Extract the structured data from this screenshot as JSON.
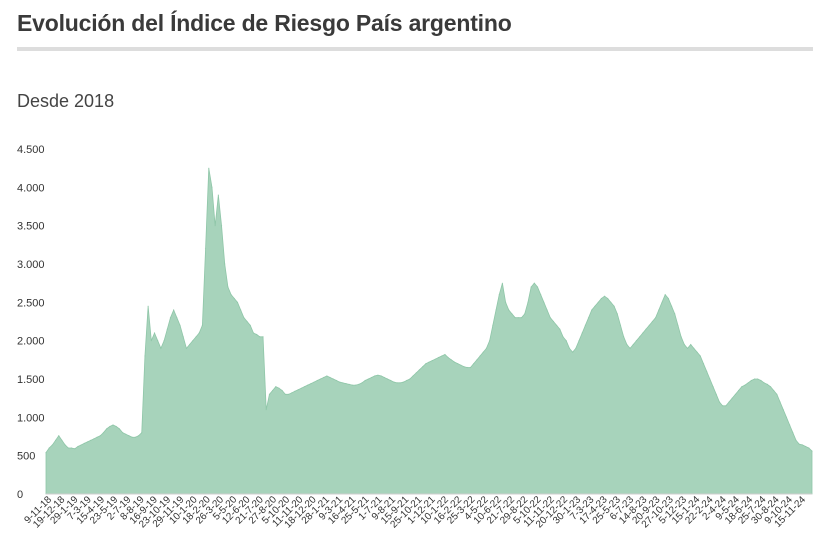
{
  "header": {
    "title": "Evolución del Índice de Riesgo País argentino",
    "subtitle": "Desde 2018"
  },
  "colors": {
    "area_fill": "#a7d3bb",
    "area_stroke": "#8fc6a8",
    "text": "#333333",
    "rule": "#dddddd"
  },
  "chart_data": {
    "type": "area",
    "title": "Evolución del Índice de Riesgo País argentino",
    "subtitle": "Desde 2018",
    "xlabel": "",
    "ylabel": "",
    "ylim": [
      0,
      4500
    ],
    "y_ticks": [
      0,
      500,
      1000,
      1500,
      2000,
      2500,
      3000,
      3500,
      4000,
      4500
    ],
    "y_tick_labels": [
      "0",
      "500",
      "1.000",
      "1.500",
      "2.000",
      "2.500",
      "3.000",
      "3.500",
      "4.000",
      "4.500"
    ],
    "x_tick_labels": [
      "9-11-18",
      "19-12-18",
      "29-1-19",
      "7-3-19",
      "15-4-19",
      "23-5-19",
      "2-7-19",
      "8-8-19",
      "16-9-19",
      "23-10-19",
      "29-11-19",
      "10-1-20",
      "18-2-20",
      "26-3-20",
      "5-5-20",
      "12-6-20",
      "21-7-20",
      "27-8-20",
      "5-10-20",
      "11-11-20",
      "18-12-20",
      "28-1-21",
      "9-3-21",
      "16-4-21",
      "25-5-21",
      "1-7-21",
      "9-8-21",
      "15-9-21",
      "25-10-21",
      "1-12-21",
      "10-1-22",
      "16-2-22",
      "25-3-22",
      "4-5-22",
      "10-6-22",
      "21-7-22",
      "29-8-22",
      "5-10-22",
      "11-11-22",
      "20-12-22",
      "30-1-23",
      "7-3-23",
      "17-4-23",
      "25-5-23",
      "6-7-23",
      "14-8-23",
      "20-9-23",
      "27-10-23",
      "5-12-23",
      "15-1-24",
      "22-2-24",
      "2-4-24",
      "9-5-24",
      "18-6-24",
      "25-7-24",
      "30-8-24",
      "9-10-24",
      "15-11-24"
    ],
    "grid": false,
    "legend": "none",
    "series": [
      {
        "values": [
          540,
          600,
          640,
          700,
          760,
          700,
          640,
          600,
          600,
          590,
          620,
          640,
          660,
          680,
          700,
          720,
          740,
          760,
          800,
          850,
          880,
          900,
          880,
          850,
          800,
          780,
          760,
          740,
          740,
          760,
          800,
          1800,
          2450,
          2000,
          2100,
          2000,
          1900,
          2000,
          2150,
          2300,
          2400,
          2300,
          2200,
          2050,
          1900,
          1950,
          2000,
          2050,
          2100,
          2200,
          3200,
          4250,
          4000,
          3500,
          3900,
          3500,
          3000,
          2700,
          2600,
          2550,
          2500,
          2400,
          2300,
          2250,
          2200,
          2100,
          2080,
          2050,
          2050,
          1100,
          1300,
          1350,
          1400,
          1380,
          1350,
          1300,
          1300,
          1320,
          1340,
          1360,
          1380,
          1400,
          1420,
          1440,
          1460,
          1480,
          1500,
          1520,
          1540,
          1520,
          1500,
          1480,
          1460,
          1450,
          1440,
          1430,
          1420,
          1420,
          1430,
          1450,
          1480,
          1500,
          1520,
          1540,
          1550,
          1540,
          1520,
          1500,
          1480,
          1460,
          1450,
          1450,
          1460,
          1480,
          1500,
          1540,
          1580,
          1620,
          1660,
          1700,
          1720,
          1740,
          1760,
          1780,
          1800,
          1820,
          1780,
          1750,
          1720,
          1700,
          1680,
          1660,
          1650,
          1650,
          1700,
          1750,
          1800,
          1850,
          1900,
          2000,
          2200,
          2400,
          2600,
          2750,
          2500,
          2400,
          2350,
          2300,
          2300,
          2300,
          2350,
          2500,
          2700,
          2750,
          2700,
          2600,
          2500,
          2400,
          2300,
          2250,
          2200,
          2150,
          2050,
          2000,
          1900,
          1850,
          1900,
          2000,
          2100,
          2200,
          2300,
          2400,
          2450,
          2500,
          2550,
          2580,
          2550,
          2500,
          2450,
          2350,
          2200,
          2050,
          1950,
          1900,
          1950,
          2000,
          2050,
          2100,
          2150,
          2200,
          2250,
          2300,
          2400,
          2500,
          2600,
          2550,
          2450,
          2350,
          2200,
          2050,
          1950,
          1900,
          1950,
          1900,
          1850,
          1800,
          1700,
          1600,
          1500,
          1400,
          1300,
          1200,
          1150,
          1150,
          1200,
          1250,
          1300,
          1350,
          1400,
          1420,
          1450,
          1480,
          1500,
          1500,
          1480,
          1450,
          1430,
          1400,
          1350,
          1300,
          1200,
          1100,
          1000,
          900,
          800,
          700,
          650,
          640,
          620,
          600,
          560
        ]
      }
    ]
  }
}
